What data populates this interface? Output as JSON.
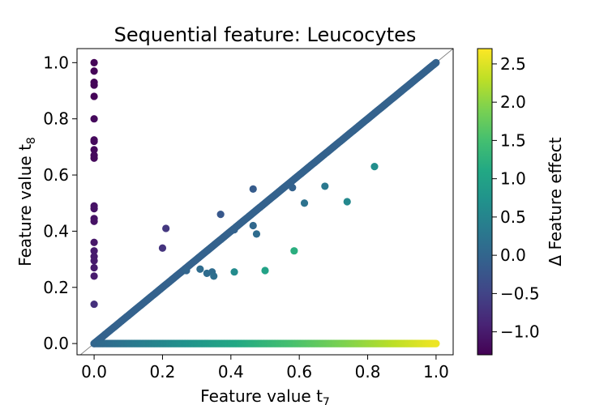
{
  "chart_data": {
    "type": "scatter",
    "title": "Sequential feature: Leucocytes",
    "xlabel": "Feature value t",
    "xlabel_sub": "7",
    "ylabel": "Feature value t",
    "ylabel_sub": "8",
    "xlim": [
      -0.05,
      1.05
    ],
    "ylim": [
      -0.04,
      1.05
    ],
    "xticks": [
      0.0,
      0.2,
      0.4,
      0.6,
      0.8,
      1.0
    ],
    "xtick_labels": [
      "0.0",
      "0.2",
      "0.4",
      "0.6",
      "0.8",
      "1.0"
    ],
    "yticks": [
      0.0,
      0.2,
      0.4,
      0.6,
      0.8,
      1.0
    ],
    "ytick_labels": [
      "0.0",
      "0.2",
      "0.4",
      "0.6",
      "0.8",
      "1.0"
    ],
    "grid": false,
    "reference_line": "y = x",
    "colorbar": {
      "label": "Δ Feature effect",
      "colormap": "viridis",
      "range": [
        -1.3,
        2.7
      ],
      "ticks": [
        -1.0,
        -0.5,
        0.0,
        0.5,
        1.0,
        1.5,
        2.0,
        2.5
      ],
      "tick_labels": [
        "−1.0",
        "−0.5",
        "0.0",
        "0.5",
        "1.0",
        "1.5",
        "2.0",
        "2.5"
      ]
    },
    "groups": [
      {
        "description": "t7 = 0, varying t8",
        "points": [
          [
            0,
            1.0
          ],
          [
            0,
            0.97
          ],
          [
            0,
            0.93
          ],
          [
            0,
            0.92
          ],
          [
            0,
            0.88
          ],
          [
            0,
            0.8
          ],
          [
            0,
            0.725
          ],
          [
            0,
            0.72
          ],
          [
            0,
            0.69
          ],
          [
            0,
            0.67
          ],
          [
            0,
            0.66
          ],
          [
            0,
            0.49
          ],
          [
            0,
            0.48
          ],
          [
            0,
            0.445
          ],
          [
            0,
            0.435
          ],
          [
            0,
            0.36
          ],
          [
            0,
            0.33
          ],
          [
            0,
            0.31
          ],
          [
            0,
            0.295
          ],
          [
            0,
            0.27
          ],
          [
            0,
            0.24
          ],
          [
            0,
            0.14
          ]
        ],
        "effects": [
          -1.25,
          -1.25,
          -1.25,
          -1.25,
          -1.25,
          -1.2,
          -1.2,
          -1.2,
          -1.2,
          -1.2,
          -1.2,
          -1.1,
          -1.1,
          -1.1,
          -1.1,
          -1.05,
          -1.0,
          -1.0,
          -1.0,
          -1.0,
          -1.0,
          -0.75
        ]
      },
      {
        "description": "Diagonal t8 = t7",
        "from": 0.0,
        "to": 1.0,
        "effect": -0.05
      },
      {
        "description": "t8 = 0, increasing t7",
        "from": 0.0,
        "to": 1.0,
        "effect_from": 0.0,
        "effect_to": 2.6
      },
      {
        "description": "Off-diagonal points",
        "points": [
          [
            0.21,
            0.41
          ],
          [
            0.2,
            0.34
          ],
          [
            0.37,
            0.46
          ],
          [
            0.465,
            0.55
          ],
          [
            0.41,
            0.405
          ],
          [
            0.465,
            0.42
          ],
          [
            0.475,
            0.39
          ],
          [
            0.27,
            0.26
          ],
          [
            0.31,
            0.265
          ],
          [
            0.33,
            0.25
          ],
          [
            0.345,
            0.255
          ],
          [
            0.35,
            0.24
          ],
          [
            0.41,
            0.255
          ],
          [
            0.5,
            0.26
          ],
          [
            0.58,
            0.555
          ],
          [
            0.615,
            0.5
          ],
          [
            0.675,
            0.56
          ],
          [
            0.74,
            0.505
          ],
          [
            0.82,
            0.63
          ],
          [
            0.585,
            0.33
          ]
        ],
        "effects": [
          -0.65,
          -0.7,
          -0.2,
          -0.15,
          -0.05,
          0.05,
          0.1,
          0.0,
          0.1,
          0.1,
          0.1,
          0.15,
          0.6,
          1.0,
          -0.05,
          0.2,
          0.3,
          0.55,
          0.65,
          1.2
        ]
      }
    ]
  }
}
